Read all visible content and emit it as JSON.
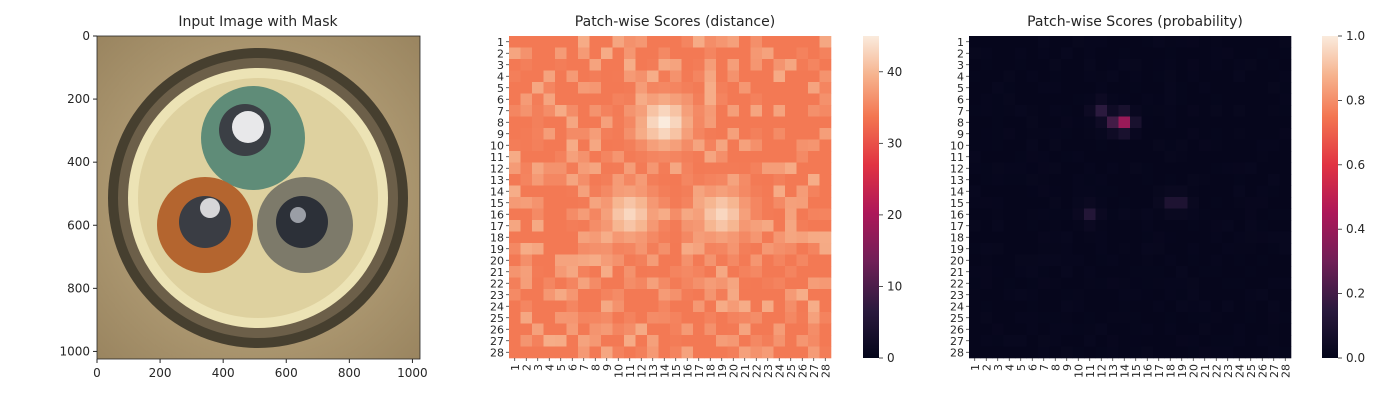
{
  "chart_data": [
    {
      "type": "image",
      "title": "Input Image with Mask",
      "x_ticks": [
        "0",
        "200",
        "400",
        "600",
        "800",
        "1000"
      ],
      "y_ticks": [
        "0",
        "200",
        "400",
        "600",
        "800",
        "1000"
      ],
      "xlim": [
        0,
        1024
      ],
      "ylim": [
        1024,
        0
      ]
    },
    {
      "type": "heatmap",
      "title": "Patch-wise Scores (distance)",
      "rows": 28,
      "cols": 28,
      "row_labels": [
        "1",
        "2",
        "3",
        "4",
        "5",
        "6",
        "7",
        "8",
        "9",
        "10",
        "11",
        "12",
        "13",
        "14",
        "15",
        "16",
        "17",
        "18",
        "19",
        "20",
        "21",
        "22",
        "23",
        "24",
        "25",
        "26",
        "27",
        "28"
      ],
      "col_labels": [
        "1",
        "2",
        "3",
        "4",
        "5",
        "6",
        "7",
        "8",
        "9",
        "10",
        "11",
        "12",
        "13",
        "14",
        "15",
        "16",
        "17",
        "18",
        "19",
        "20",
        "21",
        "22",
        "23",
        "24",
        "25",
        "26",
        "27",
        "28"
      ],
      "vmin": 0,
      "vmax": 45,
      "colorbar_ticks": [
        "0",
        "10",
        "20",
        "30",
        "40"
      ],
      "colormap": "rocket",
      "base_value": 34,
      "hotspots": [
        {
          "row": 8,
          "col": 14,
          "value": 45
        },
        {
          "row": 16,
          "col": 11,
          "value": 43
        },
        {
          "row": 16,
          "col": 19,
          "value": 43
        }
      ]
    },
    {
      "type": "heatmap",
      "title": "Patch-wise Scores (probability)",
      "rows": 28,
      "cols": 28,
      "row_labels": [
        "1",
        "2",
        "3",
        "4",
        "5",
        "6",
        "7",
        "8",
        "9",
        "10",
        "11",
        "12",
        "13",
        "14",
        "15",
        "16",
        "17",
        "18",
        "19",
        "20",
        "21",
        "22",
        "23",
        "24",
        "25",
        "26",
        "27",
        "28"
      ],
      "col_labels": [
        "1",
        "2",
        "3",
        "4",
        "5",
        "6",
        "7",
        "8",
        "9",
        "10",
        "11",
        "12",
        "13",
        "14",
        "15",
        "16",
        "17",
        "18",
        "19",
        "20",
        "21",
        "22",
        "23",
        "24",
        "25",
        "26",
        "27",
        "28"
      ],
      "vmin": 0,
      "vmax": 1,
      "colorbar_ticks": [
        "0.0",
        "0.2",
        "0.4",
        "0.6",
        "0.8",
        "1.0"
      ],
      "colormap": "rocket",
      "base_value": 0.01,
      "hotspots": [
        {
          "row": 8,
          "col": 14,
          "value": 0.4
        },
        {
          "row": 8,
          "col": 13,
          "value": 0.2
        },
        {
          "row": 7,
          "col": 12,
          "value": 0.15
        },
        {
          "row": 16,
          "col": 11,
          "value": 0.12
        },
        {
          "row": 15,
          "col": 18,
          "value": 0.1
        },
        {
          "row": 15,
          "col": 19,
          "value": 0.1
        }
      ]
    }
  ]
}
